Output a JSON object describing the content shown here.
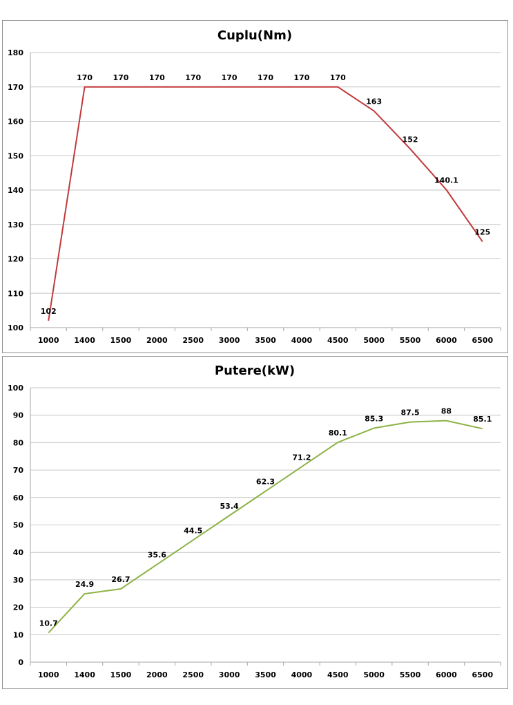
{
  "chart_data": [
    {
      "type": "line",
      "title": "Cuplu(Nm)",
      "xlabel": "",
      "ylabel": "",
      "categories": [
        "1000",
        "1400",
        "1500",
        "2000",
        "2500",
        "3000",
        "3500",
        "4000",
        "4500",
        "5000",
        "5500",
        "6000",
        "6500"
      ],
      "values": [
        102,
        170,
        170,
        170,
        170,
        170,
        170,
        170,
        170,
        163,
        152,
        140.1,
        125
      ],
      "data_labels": [
        "102",
        "170",
        "170",
        "170",
        "170",
        "170",
        "170",
        "170",
        "170",
        "163",
        "152",
        "140.1",
        "125"
      ],
      "ylim": [
        100,
        180
      ],
      "yticks": [
        "100",
        "110",
        "120",
        "130",
        "140",
        "150",
        "160",
        "170",
        "180"
      ],
      "grid": true,
      "legend": "none",
      "color": "#c0393b"
    },
    {
      "type": "line",
      "title": "Putere(kW)",
      "xlabel": "",
      "ylabel": "",
      "categories": [
        "1000",
        "1400",
        "1500",
        "2000",
        "2500",
        "3000",
        "3500",
        "4000",
        "4500",
        "5000",
        "5500",
        "6000",
        "6500"
      ],
      "values": [
        10.7,
        24.9,
        26.7,
        35.6,
        44.5,
        53.4,
        62.3,
        71.2,
        80.1,
        85.3,
        87.5,
        88,
        85.1
      ],
      "data_labels": [
        "10.7",
        "24.9",
        "26.7",
        "35.6",
        "44.5",
        "53.4",
        "62.3",
        "71.2",
        "80.1",
        "85.3",
        "87.5",
        "88",
        "85.1"
      ],
      "ylim": [
        0,
        100
      ],
      "yticks": [
        "0",
        "10",
        "20",
        "30",
        "40",
        "50",
        "60",
        "70",
        "80",
        "90",
        "100"
      ],
      "grid": true,
      "legend": "none",
      "color": "#8db245"
    }
  ]
}
